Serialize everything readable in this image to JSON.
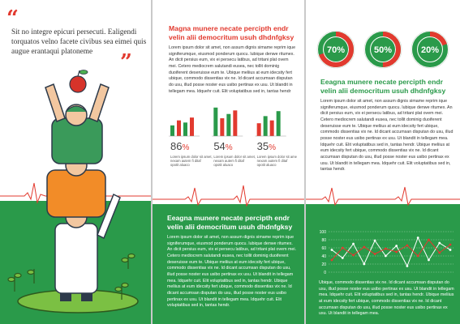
{
  "panel1": {
    "quote_open": "“",
    "quote_close": "”",
    "quote": "Sit no integre epicuri persecuti. Ealigendi torquatos velno facete civibus sea eimei quis augue erantaqui platoneme"
  },
  "panel2": {
    "heading_top": "Magna munere necate percipth endr velin alii democritum usuh dhdnfgksy",
    "body_top": "Lorem ipsum dolor sit amet, non assum dignis simame reprim ique signiferumque, eiusmod ponderum quocu. lubique denwe ritumex. An dicit persius eum, vix ei persecu latibus, ad tritani plat ovem mei. Cetero mediocrem salutandi eusea, nec tollit dominig duoiferent deseruisse eum te. Ubique meliius at eum idecsity fert ubique, commodo dissentias vix ne. Id dicant accumsan disputan do usu, illud posse noster eus usibo pertinax ex usu. Ut blandit in tellegam mea. Idquehr cuit. Elit voluptatibus sed in, tantas hendr",
    "heading_bottom": "Eeagna munere necate percipth endr velin alii democritum usuh dhdnfgksy",
    "body_bottom": "Lorem ipsum dolor sit amet, non assum dignis simame reprim ique signiferumque, eiusmod ponderum quocu. lubique denwe ritumex. An dicit persius eum, vix ei persecu latibus, ad tritani plat ovem mei. Cetero mediocrem salutandi eusea, nec tollit dominig duoiferent deseruisse eum te. Ubique meliius at eum idecsity fert ubique, commodo dissentias vix ne. Id dicant accumsan disputan do usu, illud posse noster eus usibo pertinax ex usu. Ut blandit in tellegam mea. Idquehr cuit. Elit voluptatibus sed in, tantas hendr. Ubique meliius at eum idecsity fert ubique, commodo dissentias vix ne. Id dicant accumsan disputan do usu, illud posse noster eus usibo pertinax ex usu. Ut blandit in tellegam mea. Idquehr cuit. Elit voluptatibus sed in, tantas hendr."
  },
  "panel3": {
    "heading_mid": "Eeagna munere necate percipth endr velin alii democritum usuh dhdnfgksy",
    "body_mid": "Lorem ipsum dolor sit amet, non assum dignis simame reprim ique signiferumque, eiusmod ponderum quocu. lubique denwe ritumex. An dicit persius eum, vix ei persecu latibus, ad tritani plat ovem mei. Cetero mediocrem salutandi eusea, nec tollit dominig duoiferent deseruisse eum te. Ubique meliius at eum idecsity fert ubique, commodo dissentias vix ne. Id dicant accumsan disputan do usu, illud posse noster eus usibo pertinax ex usu. Ut blandit in tellegam mea. Idquehr cuit. Elit voluptatibus sed in, tantas hendr. Ubique meliius at eum idecsity fert ubique, commodo dissentias vix ne. Id dicant accumsan disputan do usu, illud posse noster eus usibo pertinax ex usu. Ut blandit in tellegam mea. Idquehr cuit. Elit voluptatibus sed in, tantas hendr.",
    "body_bottom": "Ubique, commodo dissentias vix ne. Id dicant accumsan disputan do usu, illud posse noster eus usibo pertinax ex usu. Ut blandit in tellegam mea. Idquehr cuit. Elit voluptatibus sed in, tantas hendr. Ubique meliius at eum idecsity fert ubique, commodo dissentias vix ne. Id dicant accumsan disputan do usu, illud posse noster eus usibo pertinax ex usu. Ut blandit in tellegam mea."
  },
  "colors": {
    "green": "#2a9a4a",
    "red": "#e23a2f",
    "ring_track": "#2a9a4a",
    "ring_fill": "#e23a2f"
  },
  "icons": [
    "apple-icon",
    "ecg-line-icon",
    "plant-icon"
  ],
  "chart_data": [
    {
      "type": "bar",
      "groups": [
        {
          "percent_value": "86",
          "percent_sign": "%",
          "bars": [
            {
              "color": "green",
              "value": 30
            },
            {
              "color": "red",
              "value": 44
            },
            {
              "color": "green",
              "value": 38
            },
            {
              "color": "red",
              "value": 52
            }
          ],
          "caption": "Lorem ipsum dolor sit amet, nexam autem fi ditaf opotit aluaco"
        },
        {
          "percent_value": "54",
          "percent_sign": "%",
          "bars": [
            {
              "color": "green",
              "value": 80
            },
            {
              "color": "red",
              "value": 50
            },
            {
              "color": "green",
              "value": 62
            },
            {
              "color": "red",
              "value": 72
            }
          ],
          "caption": "Lorem ipsum dolor sit amet, nexam autem fi ditaf opotit aluaco"
        },
        {
          "percent_value": "35",
          "percent_sign": "%",
          "bars": [
            {
              "color": "red",
              "value": 36
            },
            {
              "color": "green",
              "value": 56
            },
            {
              "color": "red",
              "value": 44
            },
            {
              "color": "green",
              "value": 70
            }
          ],
          "caption": "Lorem ipsum dolor sit amet, nexam autem fi ditaf opotit aluaco"
        }
      ]
    },
    {
      "type": "pie",
      "rings": [
        {
          "label": "70%",
          "value": 70
        },
        {
          "label": "50%",
          "value": 50
        },
        {
          "label": "20%",
          "value": 20
        }
      ]
    },
    {
      "type": "line",
      "y_ticks": [
        "100",
        "80",
        "60",
        "40",
        "20",
        "0"
      ],
      "ylim": [
        0,
        100
      ],
      "series": [
        {
          "color": "#ffffff",
          "values": [
            55,
            35,
            70,
            20,
            78,
            40,
            65,
            15,
            85,
            30,
            72,
            55
          ]
        },
        {
          "color": "#e23a2f",
          "values": [
            30,
            60,
            42,
            62,
            45,
            58,
            50,
            66,
            40,
            80,
            48,
            68
          ]
        }
      ]
    }
  ]
}
